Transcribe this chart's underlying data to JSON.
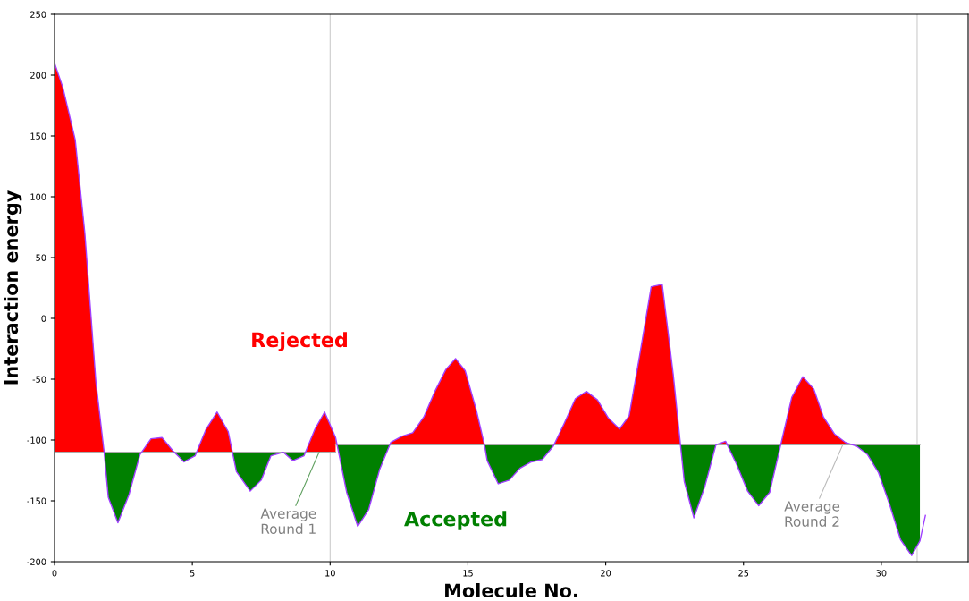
{
  "chart_data": {
    "type": "line",
    "xlabel": "Molecule No.",
    "ylabel": "Interaction energy",
    "xlim": [
      0,
      33.15
    ],
    "xticks": [
      0,
      5,
      10,
      15,
      20,
      25,
      30
    ],
    "ylim": [
      -200,
      250
    ],
    "yticks": [
      -200,
      -150,
      -100,
      -50,
      0,
      50,
      100,
      150,
      200,
      250
    ],
    "grid": false,
    "legend": false,
    "marker": "none",
    "series": [
      {
        "color": "#a040ff",
        "x": [
          0,
          0.3,
          0.75,
          1.1,
          1.5,
          1.8,
          1.95,
          2.3,
          2.7,
          3.1,
          3.5,
          3.9,
          4.3,
          4.7,
          5.1,
          5.5,
          5.9,
          6.3,
          6.6,
          7.1,
          7.5,
          7.85,
          8.3,
          8.65,
          9.05,
          9.45,
          9.8,
          10.2,
          10.6,
          11.0,
          11.4,
          11.8,
          12.2,
          12.6,
          13.0,
          13.4,
          13.8,
          14.2,
          14.55,
          14.9,
          15.3,
          15.6,
          15.7,
          16.1,
          16.5,
          16.9,
          17.3,
          17.7,
          18.1,
          18.5,
          18.9,
          19.3,
          19.7,
          20.1,
          20.5,
          20.85,
          21.25,
          21.65,
          22.05,
          22.45,
          22.85,
          23.2,
          23.6,
          24.0,
          24.35,
          24.75,
          25.15,
          25.55,
          25.95,
          26.35,
          26.75,
          27.15,
          27.55,
          27.9,
          28.3,
          28.7,
          29.1,
          29.5,
          29.9,
          30.3,
          30.7,
          31.1,
          31.4,
          31.6
        ],
        "values": [
          210,
          190,
          147,
          70,
          -52,
          -110,
          -147,
          -168,
          -145,
          -112,
          -99,
          -98,
          -109,
          -118,
          -113,
          -91,
          -77,
          -93,
          -126,
          -142,
          -133,
          -113,
          -110,
          -117,
          -113,
          -91,
          -77,
          -98,
          -143,
          -171,
          -157,
          -124,
          -102,
          -97,
          -94,
          -81,
          -60,
          -42,
          -33,
          -43,
          -75,
          -104,
          -117,
          -136,
          -133,
          -123,
          -118,
          -116,
          -105,
          -86,
          -66,
          -60,
          -67,
          -82,
          -91,
          -80,
          -28,
          26,
          28,
          -46,
          -134,
          -164,
          -138,
          -104,
          -101,
          -120,
          -142,
          -154,
          -143,
          -104,
          -65,
          -48,
          -58,
          -81,
          -95,
          -102,
          -105,
          -112,
          -127,
          -153,
          -182,
          -195,
          -183,
          -162
        ]
      },
      {
        "color": "#aaaaaa",
        "colors": [
          "#ff0000",
          "#008000"
        ],
        "x": [
          0,
          10.2
        ],
        "values": [
          -110,
          -110
        ]
      },
      {
        "color": "#aaaaaa",
        "colors": [
          "#ff0000",
          "#008000"
        ],
        "x": [
          10.2,
          31.4
        ],
        "values": [
          -104,
          -104
        ]
      }
    ],
    "ref_lines": [
      {
        "axis": "x",
        "value": 10,
        "color": "#cccccc"
      },
      {
        "axis": "x",
        "value": 31.3,
        "color": "#cccccc"
      }
    ],
    "annotations": [
      "Rejected",
      "Accepted",
      {
        "text": "Average\nRound 1",
        "x": 9.6,
        "y": -110
      },
      {
        "text": "Average\nRound 2",
        "x": 28.6,
        "y": -104
      }
    ]
  }
}
